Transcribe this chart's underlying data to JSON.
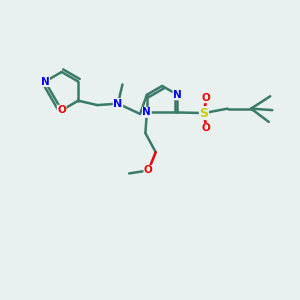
{
  "bg_color": "#e8f0f0",
  "bond_color": "#3a7a6a",
  "n_color": "#0000ee",
  "o_color": "#ee0000",
  "s_color": "#cccc00",
  "line_width": 1.8,
  "figsize": [
    3.0,
    3.0
  ],
  "dpi": 100,
  "xlim": [
    0,
    10
  ],
  "ylim": [
    0,
    10
  ]
}
